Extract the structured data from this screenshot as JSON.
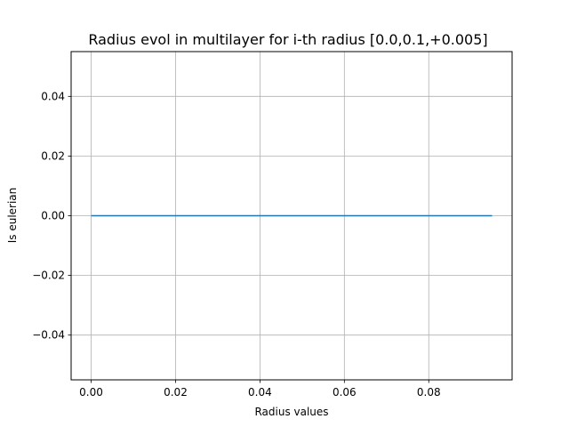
{
  "chart_data": {
    "type": "line",
    "title": "Radius evol in multilayer for i-th radius [0.0,0.1,+0.005]",
    "xlabel": "Radius values",
    "ylabel": "Is eulerian",
    "xlim": [
      -0.00475,
      0.09975
    ],
    "ylim": [
      -0.055,
      0.055
    ],
    "xticks": [
      0.0,
      0.02,
      0.04,
      0.06,
      0.08
    ],
    "xtick_labels": [
      "0.00",
      "0.02",
      "0.04",
      "0.06",
      "0.08"
    ],
    "yticks": [
      -0.04,
      -0.02,
      0.0,
      0.02,
      0.04
    ],
    "ytick_labels": [
      "−0.04",
      "−0.02",
      "0.00",
      "0.02",
      "0.04"
    ],
    "grid": true,
    "series": [
      {
        "color": "#1f77b4",
        "x": [
          0.0,
          0.005,
          0.01,
          0.015,
          0.02,
          0.025,
          0.03,
          0.035,
          0.04,
          0.045,
          0.05,
          0.055,
          0.06,
          0.065,
          0.07,
          0.075,
          0.08,
          0.085,
          0.09,
          0.095
        ],
        "y": [
          0,
          0,
          0,
          0,
          0,
          0,
          0,
          0,
          0,
          0,
          0,
          0,
          0,
          0,
          0,
          0,
          0,
          0,
          0,
          0
        ]
      }
    ]
  }
}
